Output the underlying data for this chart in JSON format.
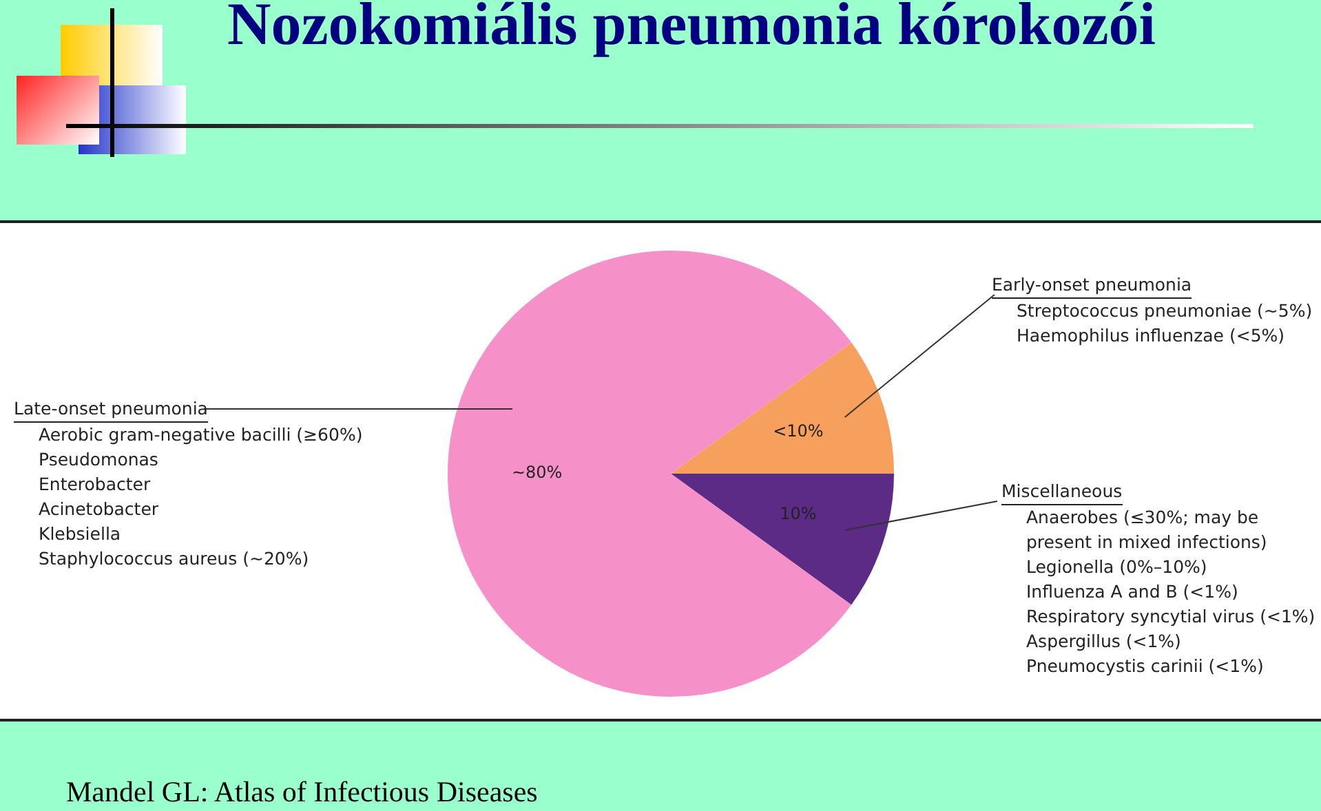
{
  "chart_data": {
    "type": "pie",
    "title": "Nozokomiális pneumonia kórokozói",
    "categories": [
      "Early-onset pneumonia",
      "Miscellaneous",
      "Late-onset pneumonia"
    ],
    "values": [
      10,
      10,
      80
    ],
    "colors": [
      "#f7a05e",
      "#5c2b86",
      "#f590c9"
    ],
    "value_labels": [
      "<10%",
      "10%",
      "~80%"
    ],
    "legend": false,
    "annotations": [
      "Streptococcus pneumoniae (~5%)\nHaemophilus influenzae (<5%)",
      "Anaerobes (≤30%; may be present in mixed infections)\nLegionella (0%–10%)\nInfluenza A and B (<1%)\nRespiratory syncytial virus (<1%)\nAspergillus (<1%)\nPneumocystis carinii (<1%)",
      "Aerobic gram-negative bacilli (≥60%)\nPseudomonas\nEnterobacter\nAcinetobacter\nKlebsiella\nStaphylococcus aureus (~20%)",
      "Mandel GL: Atlas of Infectious Diseases"
    ]
  }
}
